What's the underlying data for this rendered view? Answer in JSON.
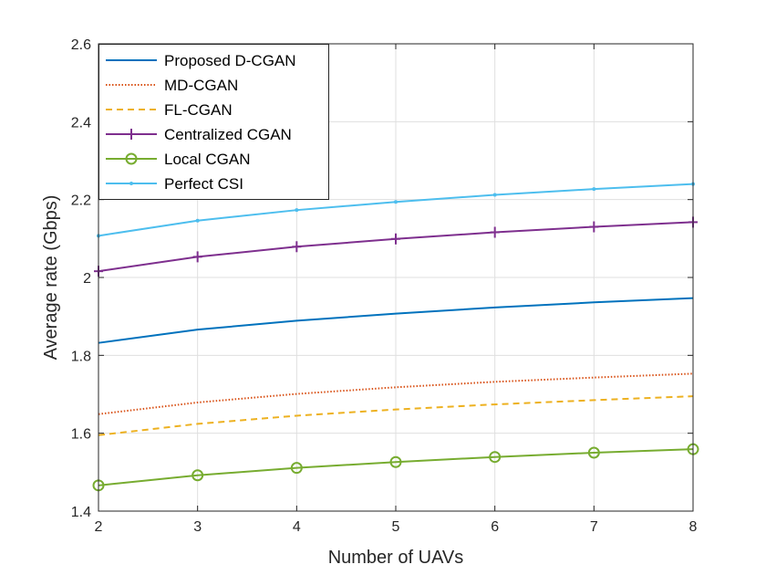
{
  "chart_data": {
    "type": "line",
    "title": "",
    "xlabel": "Number of UAVs",
    "ylabel": "Average rate (Gbps)",
    "x": [
      2,
      3,
      4,
      5,
      6,
      7,
      8
    ],
    "xlim": [
      2,
      8
    ],
    "ylim": [
      1.4,
      2.6
    ],
    "xticks": [
      "2",
      "3",
      "4",
      "5",
      "6",
      "7",
      "8"
    ],
    "yticks": [
      "1.4",
      "1.6",
      "1.8",
      "2",
      "2.2",
      "2.4",
      "2.6"
    ],
    "grid": true,
    "legend_position": "top-left",
    "series": [
      {
        "name": "Proposed D-CGAN",
        "values": [
          1.832,
          1.866,
          1.889,
          1.907,
          1.923,
          1.936,
          1.947
        ],
        "color": "#0072BD",
        "style": "solid",
        "marker": "none"
      },
      {
        "name": "MD-CGAN",
        "values": [
          1.649,
          1.679,
          1.701,
          1.718,
          1.732,
          1.743,
          1.753
        ],
        "color": "#D95319",
        "style": "dotted",
        "marker": "none"
      },
      {
        "name": "FL-CGAN",
        "values": [
          1.595,
          1.624,
          1.645,
          1.661,
          1.674,
          1.685,
          1.695
        ],
        "color": "#EDB120",
        "style": "dashed",
        "marker": "none"
      },
      {
        "name": "Centralized CGAN",
        "values": [
          2.016,
          2.053,
          2.079,
          2.099,
          2.116,
          2.13,
          2.142
        ],
        "color": "#7E2F8E",
        "style": "solid",
        "marker": "plus"
      },
      {
        "name": "Local CGAN",
        "values": [
          1.466,
          1.492,
          1.511,
          1.526,
          1.539,
          1.55,
          1.559
        ],
        "color": "#77AC30",
        "style": "solid",
        "marker": "circle"
      },
      {
        "name": "Perfect CSI",
        "values": [
          2.107,
          2.146,
          2.173,
          2.194,
          2.212,
          2.227,
          2.24
        ],
        "color": "#4DBEEE",
        "style": "solid",
        "marker": "point"
      }
    ]
  }
}
